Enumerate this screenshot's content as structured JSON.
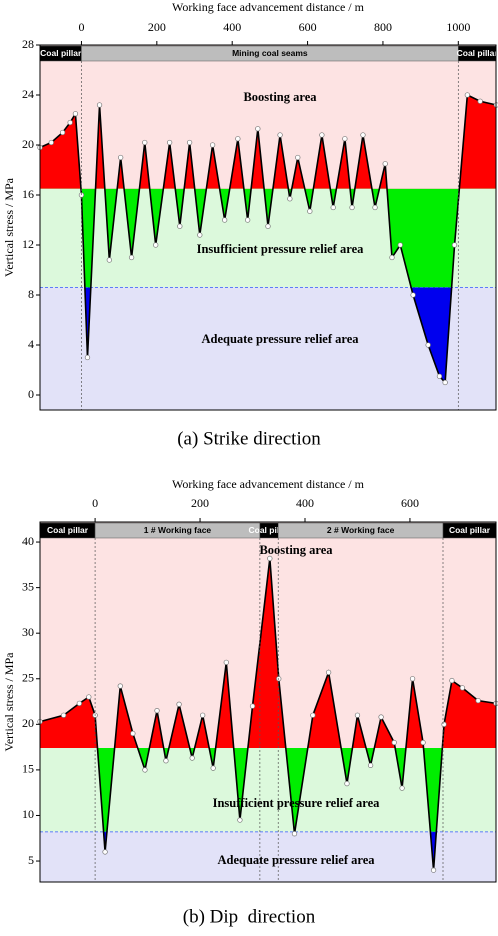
{
  "chart_data": [
    {
      "type": "line",
      "x_label": "Working face advancement distance / m",
      "y_label": "Vertical stress / MPa",
      "caption": "(a) Strike direction",
      "xlim": [
        -110,
        1100
      ],
      "xticks": [
        0,
        200,
        400,
        600,
        800,
        1000
      ],
      "ylim": [
        -1.2,
        28
      ],
      "yticks": [
        0,
        4,
        8,
        12,
        16,
        20,
        24,
        28
      ],
      "color": "#000000",
      "fill_colors": [
        "#ff0000",
        "#00ee00",
        "#0000ee"
      ],
      "zones": [
        {
          "label": "Boosting area",
          "min": 16.5,
          "color": "#fde3e3"
        },
        {
          "label": "Insufficient pressure relief area",
          "min": 8.6,
          "color": "#dcf9dc"
        },
        {
          "label": "Adequate pressure relief area",
          "color": "#e2e2f8"
        }
      ],
      "segments": [
        {
          "label": "Coal pillar",
          "end": 0,
          "color": "#000000",
          "text_color": "#ffffff"
        },
        {
          "label": "Mining coal seams",
          "end": 1000,
          "color": "#bdbdbd",
          "text_color": "#000000"
        },
        {
          "label": "Coal pillar",
          "color": "#000000",
          "text_color": "#ffffff"
        }
      ],
      "x": [
        -110,
        -80,
        -50,
        -30,
        -16,
        0,
        16,
        48,
        74,
        104,
        133,
        168,
        197,
        234,
        261,
        287,
        314,
        348,
        380,
        415,
        441,
        468,
        495,
        527,
        553,
        574,
        606,
        638,
        668,
        699,
        718,
        747,
        779,
        806,
        824,
        846,
        880,
        920,
        950,
        965,
        990,
        1024,
        1058,
        1101
      ],
      "values": [
        19.8,
        20.2,
        21,
        21.8,
        22.5,
        16,
        3,
        23.2,
        10.8,
        19,
        11,
        20.2,
        12,
        20.2,
        13.5,
        20.2,
        12.8,
        20,
        14,
        20.5,
        14,
        21.3,
        13.5,
        20.8,
        15.7,
        19,
        14.7,
        20.8,
        15,
        20.5,
        15,
        20.8,
        15,
        18.5,
        11,
        12,
        8,
        4,
        1.5,
        1,
        12,
        24,
        23.5,
        23.2
      ]
    },
    {
      "type": "line",
      "x_label": "Working face advancement distance / m",
      "y_label": "Vertical stress / MPa",
      "caption": "(b) Dip  direction",
      "xlim": [
        -105,
        764
      ],
      "xticks": [
        0,
        200,
        400,
        600
      ],
      "ylim": [
        2.7,
        42.2
      ],
      "yticks": [
        5,
        10,
        15,
        20,
        25,
        30,
        35,
        40
      ],
      "color": "#000000",
      "fill_colors": [
        "#ff0000",
        "#00ee00",
        "#0000ee"
      ],
      "zones": [
        {
          "label": "Boosting area",
          "min": 17.4,
          "color": "#fde3e3"
        },
        {
          "label": "Insufficient pressure relief area",
          "min": 8.2,
          "color": "#dcf9dc"
        },
        {
          "label": "Adequate pressure relief area",
          "color": "#e2e2f8"
        }
      ],
      "segments": [
        {
          "label": "Coal pillar",
          "end": 0,
          "color": "#000000",
          "text_color": "#ffffff"
        },
        {
          "label": "1 # Working face",
          "end": 314,
          "color": "#bdbdbd",
          "text_color": "#000000"
        },
        {
          "label": "Coal pillar",
          "end": 349,
          "color": "#000000",
          "text_color": "#ffffff"
        },
        {
          "label": "2 # Working face",
          "end": 663,
          "color": "#bdbdbd",
          "text_color": "#000000"
        },
        {
          "label": "Coal pillar",
          "color": "#000000",
          "text_color": "#ffffff"
        }
      ],
      "x": [
        -105,
        -60,
        -30,
        -12,
        0,
        19,
        48,
        72,
        95,
        118,
        135,
        160,
        185,
        205,
        225,
        250,
        276,
        300,
        333,
        350,
        380,
        415,
        445,
        480,
        500,
        525,
        545,
        570,
        585,
        605,
        625,
        645,
        665,
        680,
        700,
        730,
        764
      ],
      "values": [
        20.3,
        21,
        22.3,
        23,
        21,
        6,
        24.2,
        19,
        15,
        21.5,
        16,
        22.2,
        16.3,
        21,
        15.2,
        26.8,
        9.5,
        22,
        38.2,
        25,
        8,
        21,
        25.7,
        13.5,
        21,
        15.5,
        20.8,
        18,
        13,
        25,
        18,
        4,
        20,
        24.8,
        24,
        22.6,
        22.3
      ]
    }
  ]
}
